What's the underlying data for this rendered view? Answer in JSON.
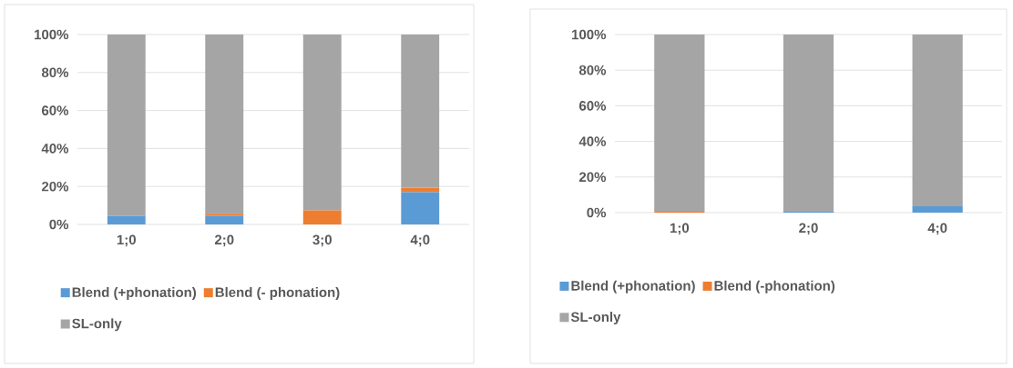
{
  "chart_data": [
    {
      "type": "bar",
      "stacked": true,
      "categories": [
        "1;0",
        "2;0",
        "3;0",
        "4;0"
      ],
      "series": [
        {
          "name": "Blend (+phonation)",
          "color": "#5b9bd5",
          "values": [
            4.5,
            4.5,
            0,
            17
          ]
        },
        {
          "name": "Blend (- phonation)",
          "color": "#ed7d31",
          "values": [
            0,
            1.1,
            7.4,
            2.2
          ]
        },
        {
          "name": "SL-only",
          "color": "#a5a5a5",
          "values": [
            95.5,
            94.4,
            92.6,
            80.8
          ]
        }
      ],
      "ylim": [
        0,
        100
      ],
      "yticks": [
        {
          "value": 0,
          "label": "0%"
        },
        {
          "value": 20,
          "label": "20%"
        },
        {
          "value": 40,
          "label": "40%"
        },
        {
          "value": 60,
          "label": "60%"
        },
        {
          "value": 80,
          "label": "80%"
        },
        {
          "value": 100,
          "label": "100%"
        }
      ],
      "grid": "y",
      "legend": "bottom"
    },
    {
      "type": "bar",
      "stacked": true,
      "categories": [
        "1;0",
        "2;0",
        "4;0"
      ],
      "series": [
        {
          "name": "Blend (+phonation)",
          "color": "#5b9bd5",
          "values": [
            0,
            0.5,
            3.6
          ]
        },
        {
          "name": "Blend (-phonation)",
          "color": "#ed7d31",
          "values": [
            0.5,
            0,
            0
          ]
        },
        {
          "name": "SL-only",
          "color": "#a5a5a5",
          "values": [
            99.5,
            99.5,
            96.4
          ]
        }
      ],
      "ylim": [
        0,
        100
      ],
      "yticks": [
        {
          "value": 0,
          "label": "0%"
        },
        {
          "value": 20,
          "label": "20%"
        },
        {
          "value": 40,
          "label": "40%"
        },
        {
          "value": 60,
          "label": "60%"
        },
        {
          "value": 80,
          "label": "80%"
        },
        {
          "value": 100,
          "label": "100%"
        }
      ],
      "grid": "y",
      "legend": "bottom"
    }
  ]
}
